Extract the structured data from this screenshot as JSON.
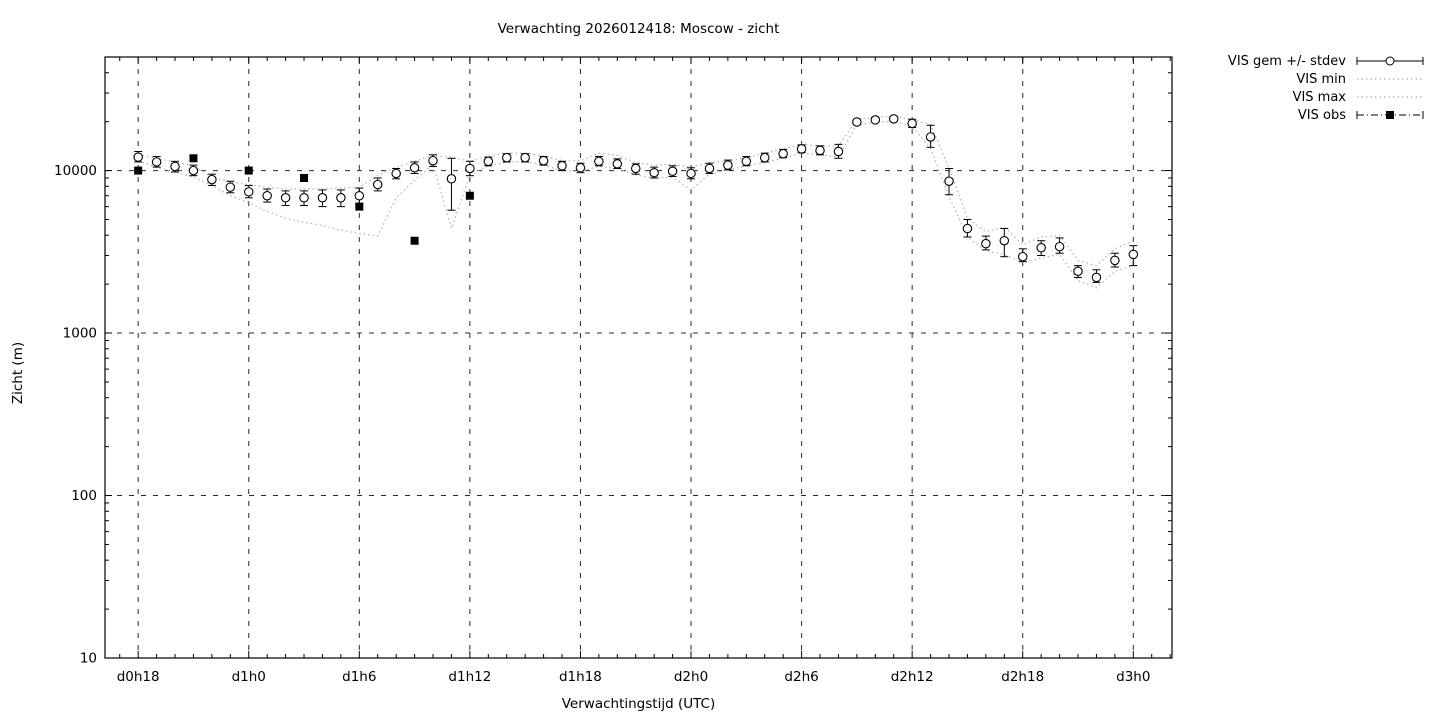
{
  "chart": {
    "title": "Verwachting 2026012418: Moscow - zicht",
    "xlabel": "Verwachtingstijd (UTC)",
    "ylabel": "Zicht (m)"
  },
  "colors": {
    "foreground": "#000000",
    "envelope_dotted": "#b0b0b0",
    "grid": "#2a2a2a",
    "background": "#ffffff"
  },
  "chart_data": {
    "type": "line",
    "title": "Verwachting 2026012418: Moscow - zicht",
    "xlabel": "Verwachtingstijd (UTC)",
    "ylabel": "Zicht (m)",
    "y_scale": "log",
    "ylim": [
      10,
      50000
    ],
    "yticks": [
      10,
      100,
      1000,
      10000
    ],
    "ytick_labels": [
      "10",
      "100",
      "1000",
      "10000"
    ],
    "xlim_hours": [
      -1.8,
      56.1
    ],
    "xtick_hours": [
      0,
      6,
      12,
      18,
      24,
      30,
      36,
      42,
      48,
      54
    ],
    "xtick_labels": [
      "d0h18",
      "d1h0",
      "d1h6",
      "d1h12",
      "d1h18",
      "d2h0",
      "d2h6",
      "d2h12",
      "d2h18",
      "d3h0"
    ],
    "grid": true,
    "legend_position": "outside-top-right",
    "series": [
      {
        "name": "VIS gem +/- stdev",
        "style": "errorbar-circle",
        "start_hour": 0,
        "hour_step": 1,
        "values": [
          12100,
          11300,
          10600,
          10000,
          8800,
          7900,
          7400,
          7000,
          6800,
          6800,
          6800,
          6800,
          7000,
          8200,
          9600,
          10400,
          11500,
          8900,
          10300,
          11400,
          12000,
          12000,
          11500,
          10700,
          10400,
          11400,
          11000,
          10300,
          9700,
          9900,
          9600,
          10300,
          10800,
          11400,
          12000,
          12700,
          13600,
          13300,
          13100,
          19900,
          20500,
          20800,
          19500,
          16100,
          8600,
          4400,
          3550,
          3700,
          2950,
          3350,
          3400,
          2400,
          2200,
          2800,
          3050
        ],
        "err_lo": [
          11300,
          10500,
          9800,
          9300,
          8100,
          7300,
          6800,
          6400,
          6100,
          6100,
          6000,
          6000,
          6200,
          7500,
          8900,
          9600,
          10600,
          5700,
          9300,
          10700,
          11300,
          11300,
          10800,
          10000,
          9700,
          10700,
          10300,
          9500,
          9000,
          9200,
          8900,
          9600,
          10100,
          10700,
          11300,
          12000,
          12900,
          12500,
          11900,
          19200,
          19800,
          20100,
          18400,
          13900,
          7100,
          3900,
          3250,
          2950,
          2750,
          3000,
          3100,
          2200,
          2050,
          2550,
          2600
        ],
        "err_hi": [
          13100,
          12200,
          11400,
          10800,
          9500,
          8600,
          8100,
          7700,
          7500,
          7500,
          7600,
          7600,
          7800,
          9000,
          10300,
          11300,
          12500,
          11900,
          11400,
          12100,
          12700,
          12700,
          12200,
          11400,
          11100,
          12200,
          11800,
          11000,
          10500,
          10700,
          10400,
          11100,
          11600,
          12200,
          12800,
          13500,
          14400,
          14200,
          14500,
          20700,
          21300,
          21600,
          20700,
          19000,
          10300,
          5000,
          3950,
          4400,
          3300,
          3700,
          3850,
          2600,
          2450,
          3100,
          3450
        ]
      },
      {
        "name": "VIS min",
        "style": "dotted",
        "start_hour": 0,
        "hour_step": 1,
        "values": [
          11500,
          10500,
          9800,
          9100,
          8100,
          7000,
          6350,
          5600,
          5100,
          4800,
          4600,
          4300,
          4100,
          3950,
          6800,
          8700,
          10900,
          4400,
          9400,
          10700,
          11300,
          11400,
          10800,
          10000,
          9900,
          10600,
          10300,
          9400,
          9000,
          9100,
          7600,
          9500,
          10100,
          10700,
          11200,
          11900,
          12800,
          12500,
          12100,
          19200,
          19800,
          20100,
          18600,
          13700,
          6900,
          3900,
          3200,
          3050,
          2700,
          2900,
          3050,
          2100,
          1900,
          2400,
          2600
        ]
      },
      {
        "name": "VIS max",
        "style": "dotted",
        "start_hour": 0,
        "hour_step": 1,
        "values": [
          12600,
          11900,
          11300,
          10700,
          9100,
          8500,
          8200,
          7900,
          7700,
          7700,
          7700,
          7800,
          7900,
          9300,
          10500,
          11400,
          12400,
          12100,
          11400,
          12300,
          12800,
          12800,
          12300,
          11500,
          11500,
          12800,
          12400,
          11200,
          10800,
          10900,
          10500,
          11200,
          11500,
          12000,
          12800,
          13600,
          14500,
          14200,
          14100,
          20700,
          21300,
          21600,
          20700,
          19200,
          10400,
          5100,
          4200,
          4500,
          3500,
          3900,
          4000,
          2800,
          2600,
          3300,
          3700
        ]
      },
      {
        "name": "VIS obs",
        "style": "filled-square",
        "hours": [
          0,
          3,
          6,
          9,
          12,
          15,
          18
        ],
        "values": [
          10000,
          11900,
          10000,
          9000,
          6000,
          3700,
          7000
        ]
      }
    ]
  }
}
